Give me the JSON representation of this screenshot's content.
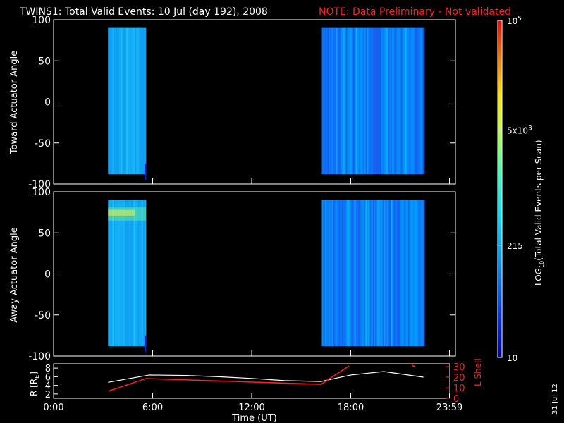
{
  "title": "TWINS1: Total Valid Events: 10 Jul (day 192), 2008",
  "note": "NOTE: Data Preliminary - Not validated",
  "stamp": "31 Jul 12",
  "panels": [
    {
      "ylabel": "Toward Actuator Angle",
      "yticks": [
        "100",
        "50",
        "0",
        "-50",
        "-100"
      ],
      "ytick_values": [
        100,
        50,
        0,
        -50,
        -100
      ]
    },
    {
      "ylabel": "Away Actuator Angle",
      "yticks": [
        "100",
        "50",
        "0",
        "-50",
        "-100"
      ],
      "ytick_values": [
        100,
        50,
        0,
        -50,
        -100
      ]
    }
  ],
  "colorbar": {
    "label": "LOG10(Total Valid Events per Scan)",
    "label_main": "LOG",
    "label_sub": "10",
    "label_rest": "(Total Valid Events per Scan)",
    "ticks": [
      {
        "base": "10",
        "exp": "5"
      },
      {
        "base": "5x10",
        "exp": "3"
      },
      {
        "base": "215",
        "exp": ""
      },
      {
        "base": "10",
        "exp": ""
      }
    ],
    "tick_values": [
      100000,
      5000,
      215,
      10
    ],
    "scale": "log",
    "range": [
      10,
      100000
    ],
    "colors": [
      "#0000a0",
      "#0030ff",
      "#0090ff",
      "#00e0ff",
      "#40ffb0",
      "#c0ff40",
      "#ffe000",
      "#ff8000",
      "#ff0000"
    ]
  },
  "orbit": {
    "left_label": "R [R",
    "left_label_sub": "E",
    "left_label_end": "]",
    "right_label": "L Shell",
    "left_ticks": [
      "8",
      "6",
      "4",
      "2"
    ],
    "left_tick_values": [
      8,
      6,
      4,
      2
    ],
    "right_ticks": [
      "30",
      "20",
      "10",
      "0"
    ],
    "right_tick_values": [
      30,
      20,
      10,
      0
    ]
  },
  "xaxis": {
    "ticks": [
      "0:00",
      "6:00",
      "12:00",
      "18:00",
      "23:59"
    ],
    "tick_values": [
      0,
      6,
      12,
      18,
      23.98
    ],
    "label": "Time (UT)"
  },
  "chart_data": {
    "type": "heatmap",
    "xlim": [
      0,
      24
    ],
    "ylim": [
      -100,
      100
    ],
    "data_intervals": [
      {
        "start": 3.3,
        "end": 5.6,
        "ymin": -88,
        "ymax": 90
      },
      {
        "start": 16.25,
        "end": 22.4,
        "ymin": -88,
        "ymax": 90
      }
    ],
    "orbit_series": [
      {
        "name": "R [RE]",
        "x": [
          3.3,
          5.8,
          8,
          10,
          12,
          14,
          16.2,
          18,
          20,
          22.4
        ],
        "values": [
          4.7,
          6.4,
          6.3,
          6.0,
          5.6,
          5.1,
          4.9,
          6.4,
          7.2,
          5.9
        ]
      },
      {
        "name": "L Shell",
        "x": [
          3.3,
          5.6,
          16.2,
          17.9
        ],
        "values": [
          8,
          19,
          14,
          30
        ]
      }
    ]
  }
}
